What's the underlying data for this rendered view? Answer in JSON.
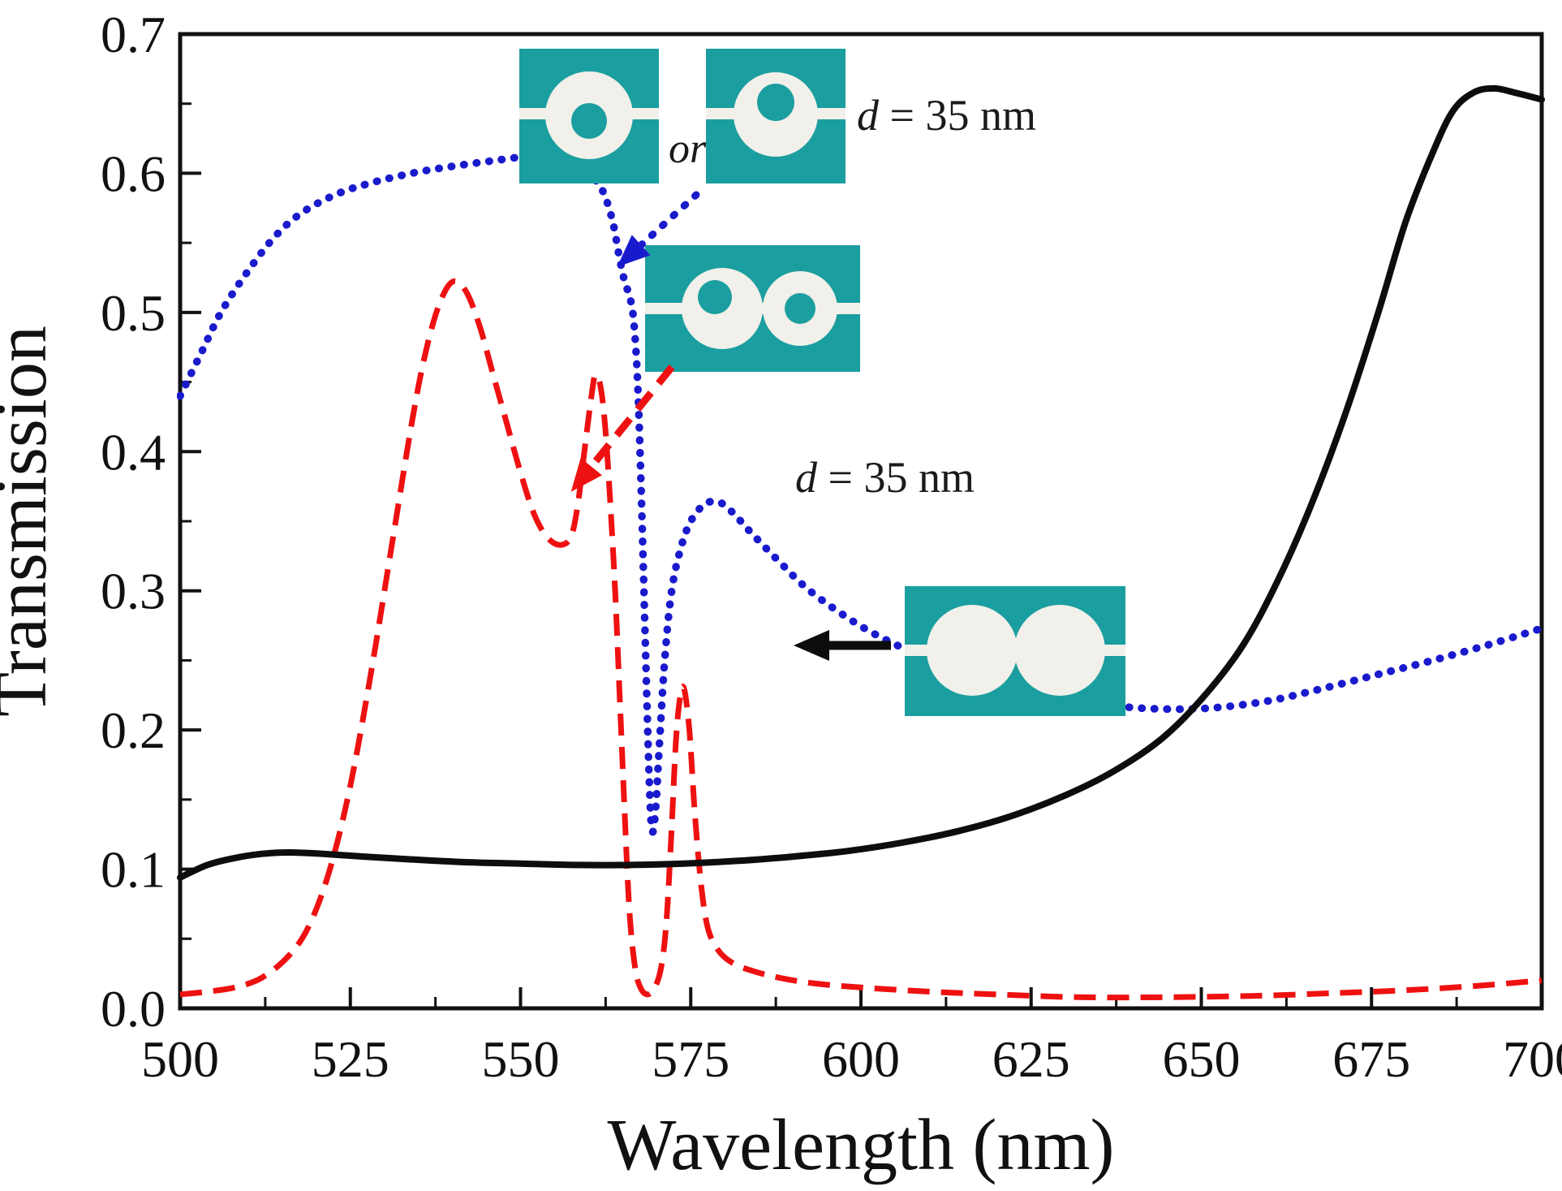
{
  "chart_data": {
    "type": "line",
    "title": "",
    "xlabel": "Wavelength (nm)",
    "ylabel": "Transmission",
    "xlim": [
      500,
      700
    ],
    "ylim": [
      0.0,
      0.7
    ],
    "x_ticks": [
      500,
      525,
      550,
      575,
      600,
      625,
      650,
      675,
      700
    ],
    "y_ticks": [
      0.0,
      0.1,
      0.2,
      0.3,
      0.4,
      0.5,
      0.6,
      0.7
    ],
    "grid": false,
    "legend": "none (structures shown as insets)",
    "series": [
      {
        "name": "single nanoring with core (d = 35 nm)",
        "style": "dotted",
        "color": "#1a1acd",
        "points": [
          [
            500,
            0.44
          ],
          [
            503,
            0.47
          ],
          [
            506,
            0.5
          ],
          [
            510,
            0.53
          ],
          [
            514,
            0.555
          ],
          [
            518,
            0.572
          ],
          [
            523,
            0.585
          ],
          [
            528,
            0.593
          ],
          [
            534,
            0.6
          ],
          [
            540,
            0.605
          ],
          [
            546,
            0.609
          ],
          [
            551,
            0.612
          ],
          [
            555,
            0.611
          ],
          [
            558,
            0.606
          ],
          [
            560,
            0.6
          ],
          [
            562,
            0.588
          ],
          [
            563.5,
            0.566
          ],
          [
            564.5,
            0.54
          ],
          [
            565.3,
            0.522
          ],
          [
            566,
            0.512
          ],
          [
            566.6,
            0.495
          ],
          [
            567.2,
            0.45
          ],
          [
            567.8,
            0.36
          ],
          [
            568.4,
            0.25
          ],
          [
            568.9,
            0.165
          ],
          [
            569.3,
            0.128
          ],
          [
            569.8,
            0.14
          ],
          [
            570.4,
            0.19
          ],
          [
            571.2,
            0.252
          ],
          [
            572.2,
            0.3
          ],
          [
            573.5,
            0.33
          ],
          [
            575,
            0.35
          ],
          [
            577,
            0.362
          ],
          [
            579,
            0.364
          ],
          [
            581,
            0.357
          ],
          [
            584,
            0.341
          ],
          [
            588,
            0.321
          ],
          [
            592,
            0.302
          ],
          [
            597,
            0.284
          ],
          [
            602,
            0.269
          ],
          [
            608,
            0.255
          ],
          [
            615,
            0.242
          ],
          [
            622,
            0.232
          ],
          [
            630,
            0.223
          ],
          [
            638,
            0.217
          ],
          [
            645,
            0.215
          ],
          [
            652,
            0.216
          ],
          [
            660,
            0.221
          ],
          [
            668,
            0.23
          ],
          [
            676,
            0.24
          ],
          [
            684,
            0.25
          ],
          [
            692,
            0.261
          ],
          [
            700,
            0.273
          ]
        ]
      },
      {
        "name": "coupled double nanorings with cores (d = 35 nm)",
        "style": "dashed",
        "color": "#ee1111",
        "points": [
          [
            500,
            0.01
          ],
          [
            504,
            0.012
          ],
          [
            508,
            0.015
          ],
          [
            512,
            0.022
          ],
          [
            516,
            0.038
          ],
          [
            519,
            0.06
          ],
          [
            522,
            0.1
          ],
          [
            525,
            0.16
          ],
          [
            528,
            0.24
          ],
          [
            531,
            0.33
          ],
          [
            534,
            0.42
          ],
          [
            536,
            0.47
          ],
          [
            538,
            0.505
          ],
          [
            540,
            0.522
          ],
          [
            542,
            0.515
          ],
          [
            544,
            0.49
          ],
          [
            546,
            0.455
          ],
          [
            548,
            0.42
          ],
          [
            550,
            0.385
          ],
          [
            552,
            0.355
          ],
          [
            554,
            0.338
          ],
          [
            556,
            0.333
          ],
          [
            557.5,
            0.34
          ],
          [
            558.5,
            0.365
          ],
          [
            559.5,
            0.405
          ],
          [
            560.5,
            0.443
          ],
          [
            561,
            0.455
          ],
          [
            561.7,
            0.448
          ],
          [
            562.4,
            0.42
          ],
          [
            563.1,
            0.37
          ],
          [
            563.9,
            0.3
          ],
          [
            564.6,
            0.22
          ],
          [
            565.3,
            0.14
          ],
          [
            566,
            0.07
          ],
          [
            566.8,
            0.03
          ],
          [
            567.6,
            0.015
          ],
          [
            568.6,
            0.01
          ],
          [
            569.6,
            0.014
          ],
          [
            570.6,
            0.028
          ],
          [
            571.4,
            0.06
          ],
          [
            572.1,
            0.12
          ],
          [
            572.8,
            0.19
          ],
          [
            573.4,
            0.222
          ],
          [
            574,
            0.23
          ],
          [
            574.8,
            0.2
          ],
          [
            575.6,
            0.14
          ],
          [
            576.5,
            0.09
          ],
          [
            577.5,
            0.058
          ],
          [
            579,
            0.042
          ],
          [
            581,
            0.033
          ],
          [
            584,
            0.027
          ],
          [
            588,
            0.022
          ],
          [
            593,
            0.018
          ],
          [
            600,
            0.015
          ],
          [
            610,
            0.012
          ],
          [
            620,
            0.01
          ],
          [
            632,
            0.008
          ],
          [
            645,
            0.008
          ],
          [
            658,
            0.009
          ],
          [
            670,
            0.011
          ],
          [
            680,
            0.013
          ],
          [
            690,
            0.016
          ],
          [
            700,
            0.02
          ]
        ]
      },
      {
        "name": "coupled double solid nanodisks",
        "style": "solid",
        "color": "#0d0d0d",
        "points": [
          [
            500,
            0.094
          ],
          [
            504,
            0.103
          ],
          [
            508,
            0.108
          ],
          [
            512,
            0.111
          ],
          [
            516,
            0.112
          ],
          [
            521,
            0.111
          ],
          [
            527,
            0.109
          ],
          [
            534,
            0.107
          ],
          [
            542,
            0.105
          ],
          [
            550,
            0.104
          ],
          [
            558,
            0.103
          ],
          [
            566,
            0.103
          ],
          [
            574,
            0.104
          ],
          [
            582,
            0.106
          ],
          [
            590,
            0.109
          ],
          [
            598,
            0.113
          ],
          [
            606,
            0.119
          ],
          [
            614,
            0.127
          ],
          [
            622,
            0.138
          ],
          [
            630,
            0.153
          ],
          [
            637,
            0.17
          ],
          [
            644,
            0.193
          ],
          [
            650,
            0.222
          ],
          [
            656,
            0.26
          ],
          [
            661,
            0.305
          ],
          [
            666,
            0.36
          ],
          [
            671,
            0.425
          ],
          [
            676,
            0.5
          ],
          [
            680,
            0.565
          ],
          [
            684,
            0.615
          ],
          [
            687,
            0.645
          ],
          [
            690,
            0.658
          ],
          [
            693,
            0.661
          ],
          [
            696,
            0.658
          ],
          [
            700,
            0.653
          ]
        ]
      }
    ],
    "annotations": {
      "or": "or",
      "d_top": {
        "var": "d",
        "rest": " = 35 nm"
      },
      "d_mid": {
        "var": "d",
        "rest": " = 35 nm"
      }
    }
  },
  "colors": {
    "inset_fill": "#1b9e9f",
    "inset_hole": "#f1f0ea",
    "axis": "#111111"
  }
}
